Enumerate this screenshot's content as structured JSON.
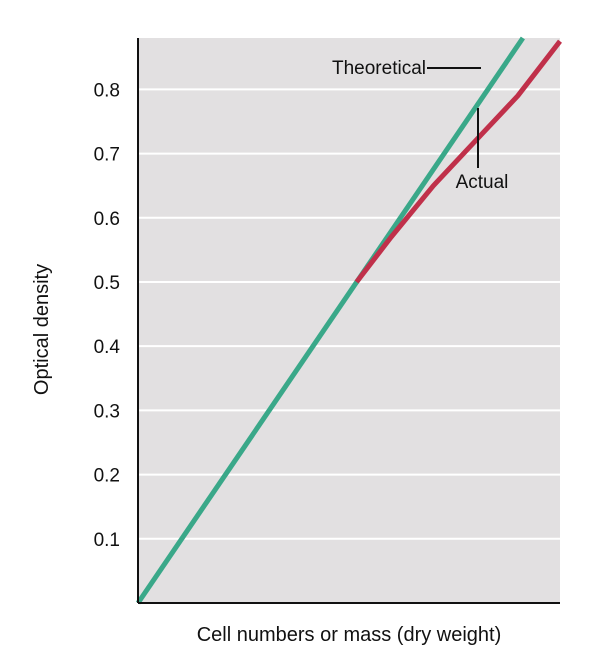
{
  "chart_data": {
    "type": "line",
    "title": "",
    "xlabel": "Cell numbers or mass (dry weight)",
    "ylabel": "Optical density",
    "xlim": [
      0,
      1
    ],
    "ylim": [
      0,
      0.88
    ],
    "yticks": [
      0.1,
      0.2,
      0.3,
      0.4,
      0.5,
      0.6,
      0.7,
      0.8
    ],
    "ytick_labels": [
      "0.1",
      "0.2",
      "0.3",
      "0.4",
      "0.5",
      "0.6",
      "0.7",
      "0.8"
    ],
    "grid": true,
    "series": [
      {
        "name": "Theoretical",
        "color": "#3aa889",
        "x": [
          0,
          0.912
        ],
        "y": [
          0,
          0.88
        ]
      },
      {
        "name": "Actual",
        "color": "#c0304a",
        "x": [
          0.518,
          0.6,
          0.7,
          0.8,
          0.9,
          1.0
        ],
        "y": [
          0.5,
          0.57,
          0.65,
          0.72,
          0.79,
          0.875
        ]
      }
    ],
    "annotations": [
      {
        "text": "Theoretical",
        "series": "Theoretical"
      },
      {
        "text": "Actual",
        "series": "Actual"
      }
    ]
  },
  "colors": {
    "plot_background": "#e2e0e1",
    "gridline": "#ffffff",
    "frame": "#111111"
  }
}
